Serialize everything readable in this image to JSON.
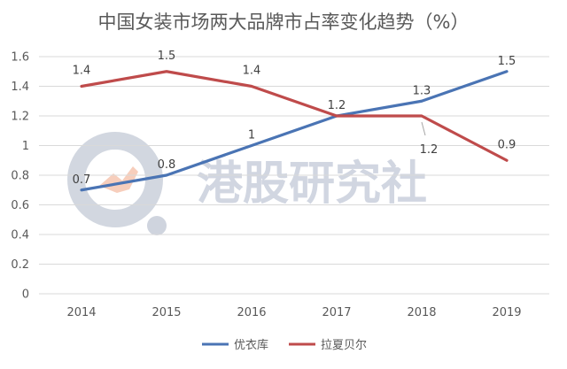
{
  "chart_data": {
    "type": "line",
    "title": "中国女装市场两大品牌市占率变化趋势（%）",
    "xlabel": "",
    "ylabel": "",
    "categories": [
      "2014",
      "2015",
      "2016",
      "2017",
      "2018",
      "2019"
    ],
    "ylim": [
      0,
      1.6
    ],
    "yticks": [
      "0",
      "0.2",
      "0.4",
      "0.6",
      "0.8",
      "1",
      "1.2",
      "1.4",
      "1.6"
    ],
    "grid": true,
    "legend_position": "bottom",
    "series": [
      {
        "name": "优衣库",
        "color": "#4a74b4",
        "values": [
          0.7,
          0.8,
          1.0,
          1.2,
          1.3,
          1.5
        ],
        "labels": [
          "0.7",
          "0.8",
          "1",
          "1.2",
          "1.3",
          "1.5"
        ]
      },
      {
        "name": "拉夏贝尔",
        "color": "#bf4b4b",
        "values": [
          1.4,
          1.5,
          1.4,
          1.2,
          1.2,
          0.9
        ],
        "labels": [
          "1.4",
          "1.5",
          "1.4",
          "",
          "1.2",
          "0.9"
        ]
      }
    ]
  },
  "watermark": {
    "text": "港股研究社",
    "logo_icon": "watermark-logo-icon"
  }
}
